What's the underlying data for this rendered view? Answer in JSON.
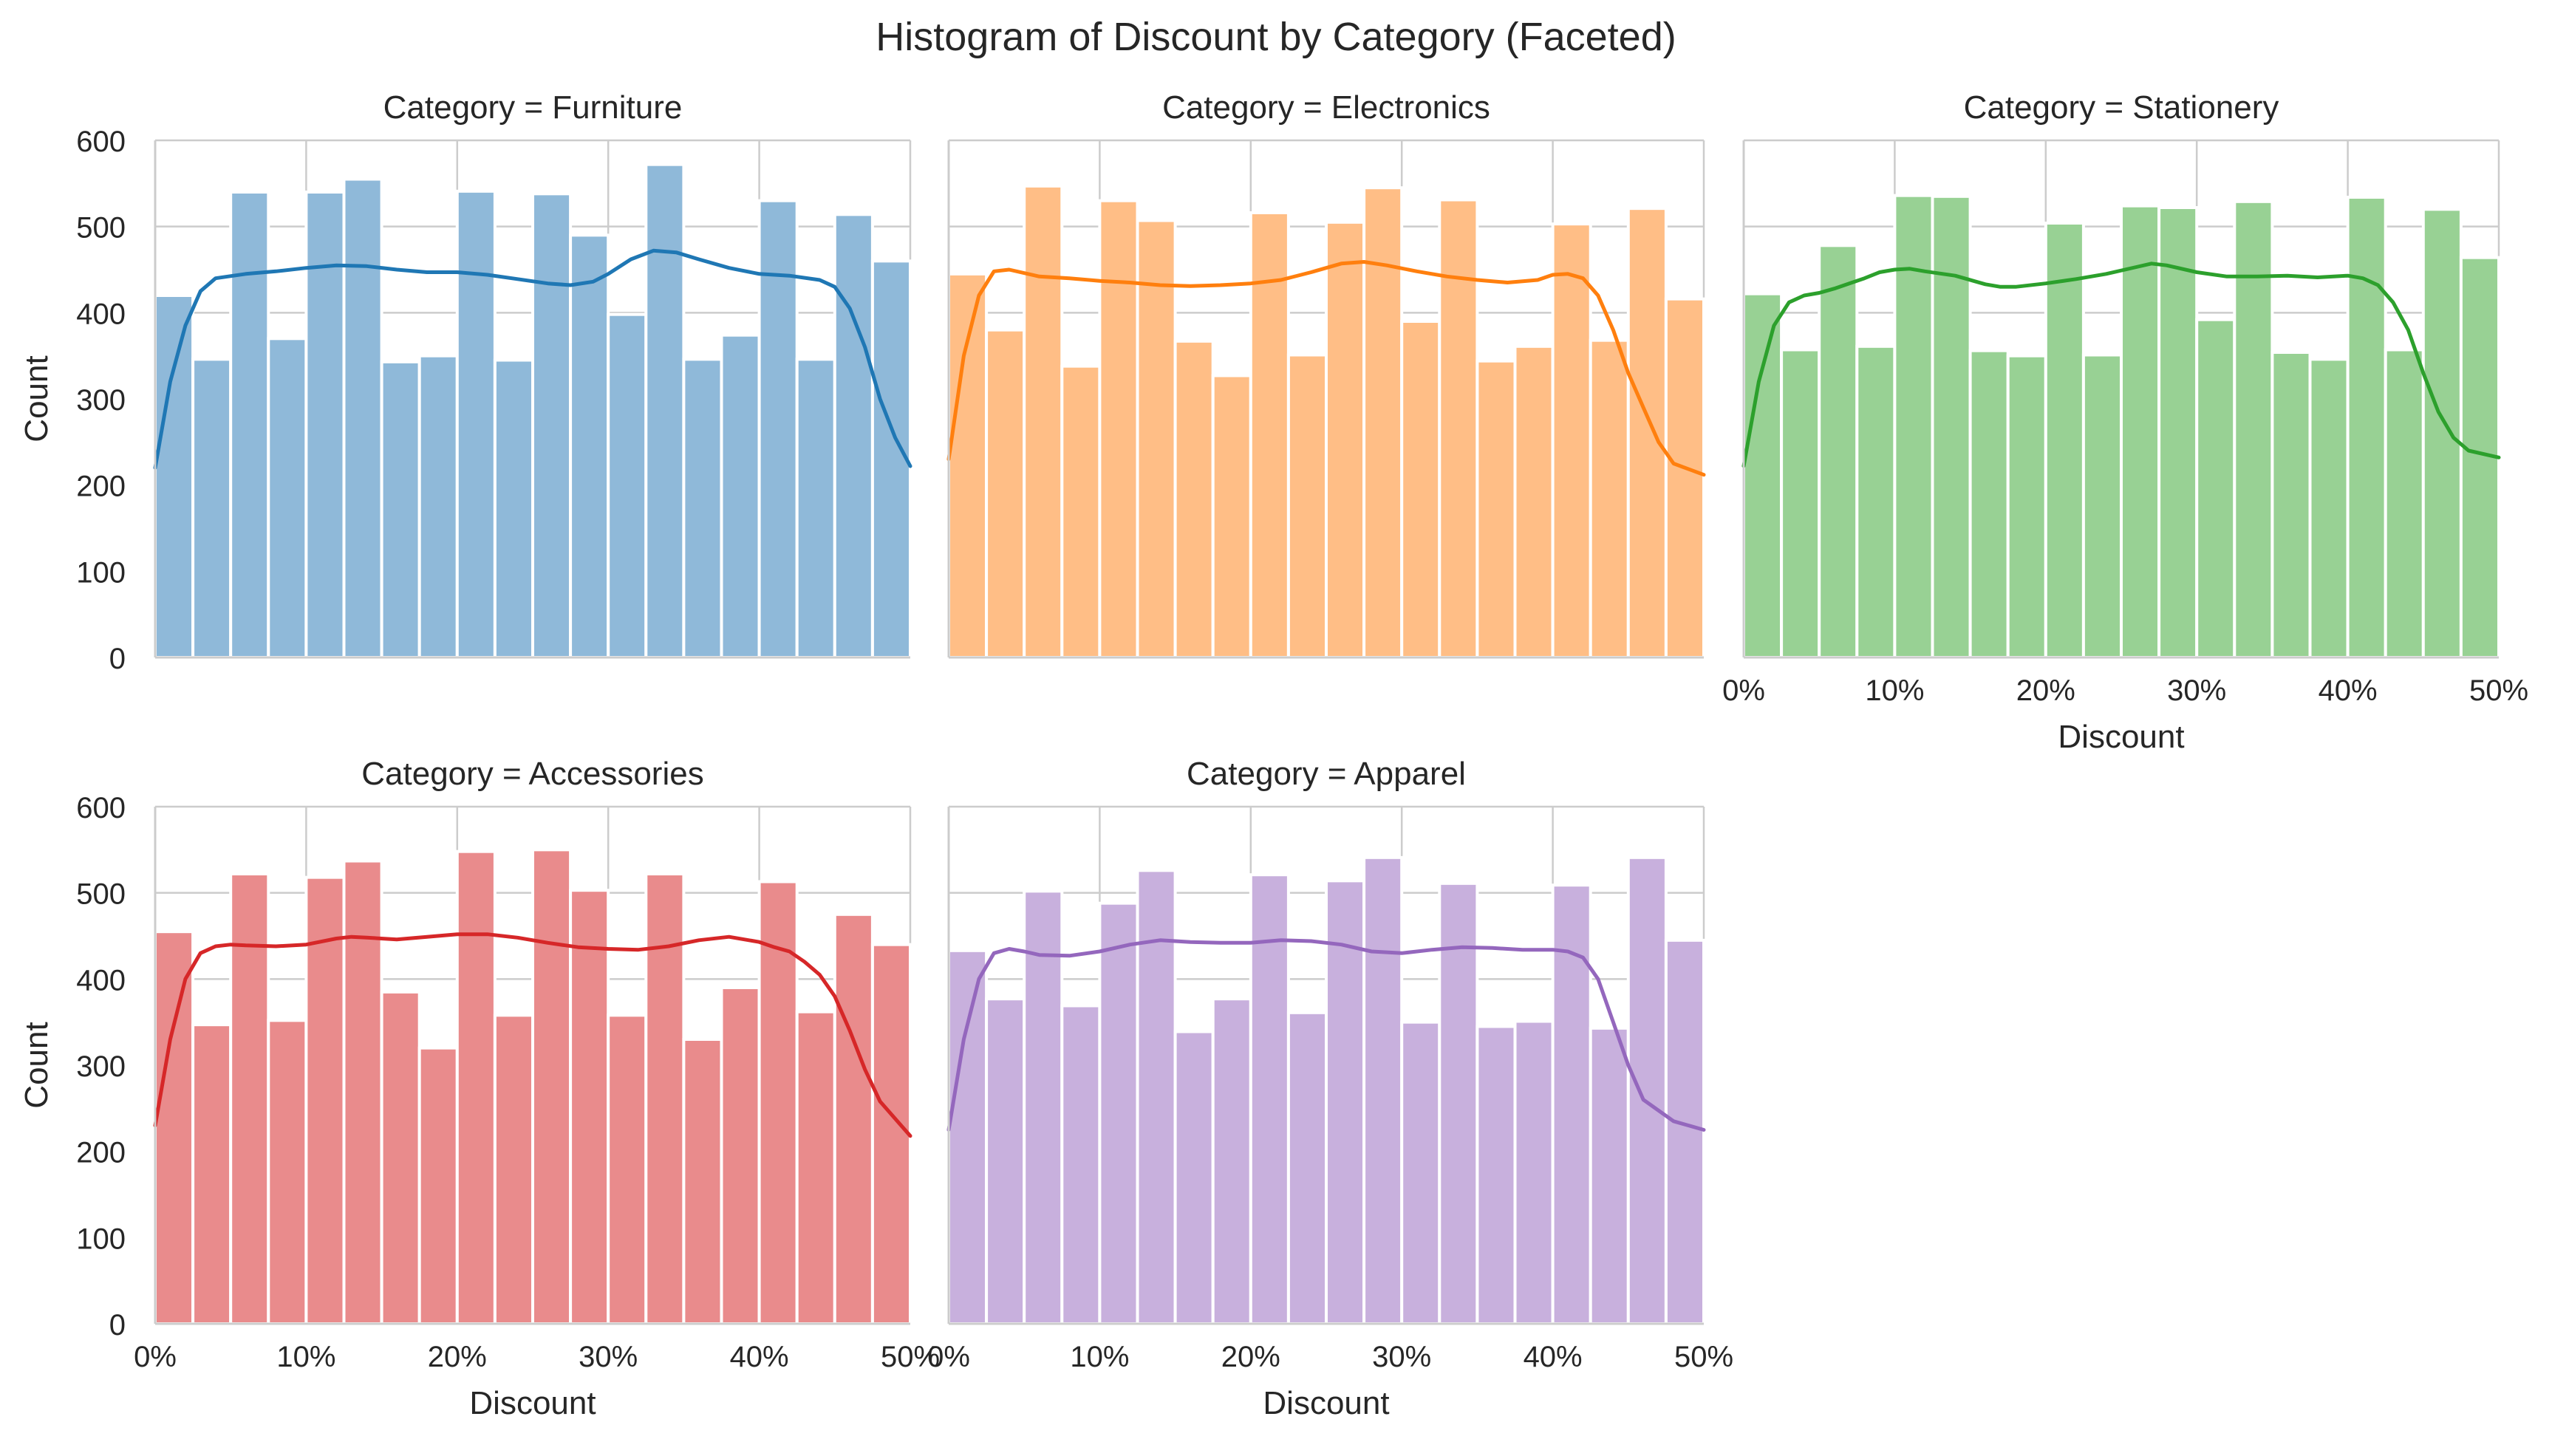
{
  "chart_data": {
    "type": "bar",
    "title": "Histogram of Discount by Category (Faceted)",
    "xlabel": "Discount",
    "ylabel": "Count",
    "xlim": [
      0,
      50
    ],
    "ylim": [
      0,
      600
    ],
    "x_ticks": [
      "0%",
      "10%",
      "20%",
      "30%",
      "40%",
      "50%"
    ],
    "y_ticks": [
      0,
      100,
      200,
      300,
      400,
      500,
      600
    ],
    "bin_width": 2.5,
    "grid": true,
    "legend": "none",
    "facets": [
      {
        "name": "Furniture",
        "title": "Category = Furniture",
        "color": "#1f77b4",
        "bar_color": "#8fb9d9",
        "values": [
          420,
          346,
          540,
          370,
          540,
          555,
          343,
          350,
          541,
          345,
          538,
          490,
          398,
          572,
          346,
          374,
          530,
          346,
          514,
          460
        ],
        "kde": [
          [
            0,
            220
          ],
          [
            1,
            320
          ],
          [
            2,
            385
          ],
          [
            3,
            425
          ],
          [
            4,
            440
          ],
          [
            6,
            445
          ],
          [
            8,
            448
          ],
          [
            10,
            452
          ],
          [
            12,
            455
          ],
          [
            14,
            454
          ],
          [
            16,
            450
          ],
          [
            18,
            447
          ],
          [
            20,
            447
          ],
          [
            22,
            444
          ],
          [
            24,
            439
          ],
          [
            26,
            434
          ],
          [
            27.5,
            432
          ],
          [
            29,
            436
          ],
          [
            30,
            445
          ],
          [
            31.5,
            462
          ],
          [
            33,
            472
          ],
          [
            34.5,
            470
          ],
          [
            36,
            462
          ],
          [
            38,
            452
          ],
          [
            40,
            445
          ],
          [
            42,
            443
          ],
          [
            44,
            438
          ],
          [
            45,
            430
          ],
          [
            46,
            405
          ],
          [
            47,
            360
          ],
          [
            48,
            300
          ],
          [
            49,
            255
          ],
          [
            50,
            222
          ]
        ]
      },
      {
        "name": "Electronics",
        "title": "Category = Electronics",
        "color": "#ff7f0e",
        "bar_color": "#ffbe86",
        "values": [
          445,
          380,
          547,
          338,
          530,
          507,
          367,
          327,
          516,
          351,
          505,
          545,
          390,
          531,
          344,
          361,
          503,
          368,
          521,
          416
        ],
        "kde": [
          [
            0,
            230
          ],
          [
            1,
            350
          ],
          [
            2,
            420
          ],
          [
            3,
            448
          ],
          [
            4,
            450
          ],
          [
            6,
            442
          ],
          [
            8,
            440
          ],
          [
            10,
            437
          ],
          [
            12,
            435
          ],
          [
            14,
            432
          ],
          [
            16,
            431
          ],
          [
            18,
            432
          ],
          [
            20,
            434
          ],
          [
            22,
            438
          ],
          [
            24,
            447
          ],
          [
            26,
            457
          ],
          [
            27.5,
            459
          ],
          [
            29,
            455
          ],
          [
            31,
            448
          ],
          [
            33,
            442
          ],
          [
            35,
            438
          ],
          [
            37,
            435
          ],
          [
            39,
            438
          ],
          [
            40,
            444
          ],
          [
            41,
            445
          ],
          [
            42,
            440
          ],
          [
            43,
            420
          ],
          [
            44,
            380
          ],
          [
            45,
            330
          ],
          [
            46,
            290
          ],
          [
            47,
            250
          ],
          [
            48,
            225
          ],
          [
            50,
            212
          ]
        ]
      },
      {
        "name": "Stationery",
        "title": "Category = Stationery",
        "color": "#2ca02c",
        "bar_color": "#98d194",
        "values": [
          422,
          357,
          478,
          361,
          536,
          535,
          356,
          350,
          504,
          351,
          524,
          522,
          392,
          529,
          354,
          346,
          534,
          357,
          520,
          464
        ],
        "kde": [
          [
            0,
            222
          ],
          [
            1,
            320
          ],
          [
            2,
            385
          ],
          [
            3,
            412
          ],
          [
            4,
            420
          ],
          [
            5,
            423
          ],
          [
            6,
            428
          ],
          [
            8,
            440
          ],
          [
            9,
            447
          ],
          [
            10,
            450
          ],
          [
            11,
            451
          ],
          [
            12,
            448
          ],
          [
            14,
            443
          ],
          [
            16,
            433
          ],
          [
            17,
            430
          ],
          [
            18,
            430
          ],
          [
            20,
            434
          ],
          [
            22,
            439
          ],
          [
            24,
            445
          ],
          [
            26,
            453
          ],
          [
            27,
            457
          ],
          [
            28,
            455
          ],
          [
            30,
            447
          ],
          [
            32,
            442
          ],
          [
            34,
            442
          ],
          [
            36,
            443
          ],
          [
            38,
            441
          ],
          [
            40,
            443
          ],
          [
            41,
            440
          ],
          [
            42,
            432
          ],
          [
            43,
            412
          ],
          [
            44,
            380
          ],
          [
            45,
            330
          ],
          [
            46,
            285
          ],
          [
            47,
            255
          ],
          [
            48,
            240
          ],
          [
            50,
            232
          ]
        ]
      },
      {
        "name": "Accessories",
        "title": "Category = Accessories",
        "color": "#d62728",
        "bar_color": "#e98b8c",
        "values": [
          455,
          347,
          522,
          352,
          518,
          537,
          385,
          320,
          548,
          358,
          550,
          503,
          358,
          522,
          330,
          390,
          513,
          362,
          475,
          440
        ],
        "kde": [
          [
            0,
            230
          ],
          [
            1,
            330
          ],
          [
            2,
            400
          ],
          [
            3,
            430
          ],
          [
            4,
            438
          ],
          [
            5,
            440
          ],
          [
            6,
            439
          ],
          [
            8,
            438
          ],
          [
            10,
            440
          ],
          [
            12,
            447
          ],
          [
            13,
            449
          ],
          [
            14,
            448
          ],
          [
            16,
            446
          ],
          [
            18,
            449
          ],
          [
            20,
            452
          ],
          [
            22,
            452
          ],
          [
            24,
            448
          ],
          [
            26,
            442
          ],
          [
            28,
            437
          ],
          [
            30,
            435
          ],
          [
            32,
            434
          ],
          [
            34,
            438
          ],
          [
            36,
            445
          ],
          [
            38,
            449
          ],
          [
            40,
            443
          ],
          [
            41,
            437
          ],
          [
            42,
            432
          ],
          [
            43,
            420
          ],
          [
            44,
            405
          ],
          [
            45,
            380
          ],
          [
            46,
            340
          ],
          [
            47,
            295
          ],
          [
            48,
            258
          ],
          [
            50,
            218
          ]
        ]
      },
      {
        "name": "Apparel",
        "title": "Category = Apparel",
        "color": "#9467bd",
        "bar_color": "#c8b0dd",
        "values": [
          433,
          377,
          502,
          369,
          488,
          526,
          339,
          377,
          521,
          361,
          514,
          541,
          350,
          511,
          345,
          351,
          509,
          343,
          541,
          445
        ],
        "kde": [
          [
            0,
            225
          ],
          [
            1,
            330
          ],
          [
            2,
            400
          ],
          [
            3,
            430
          ],
          [
            4,
            435
          ],
          [
            5,
            432
          ],
          [
            6,
            428
          ],
          [
            8,
            427
          ],
          [
            10,
            432
          ],
          [
            12,
            440
          ],
          [
            14,
            445
          ],
          [
            16,
            443
          ],
          [
            18,
            442
          ],
          [
            20,
            442
          ],
          [
            22,
            445
          ],
          [
            24,
            444
          ],
          [
            26,
            440
          ],
          [
            28,
            432
          ],
          [
            30,
            430
          ],
          [
            32,
            434
          ],
          [
            34,
            437
          ],
          [
            36,
            436
          ],
          [
            38,
            434
          ],
          [
            40,
            434
          ],
          [
            41,
            432
          ],
          [
            42,
            425
          ],
          [
            43,
            400
          ],
          [
            44,
            350
          ],
          [
            45,
            300
          ],
          [
            46,
            260
          ],
          [
            48,
            235
          ],
          [
            50,
            225
          ]
        ]
      }
    ]
  }
}
